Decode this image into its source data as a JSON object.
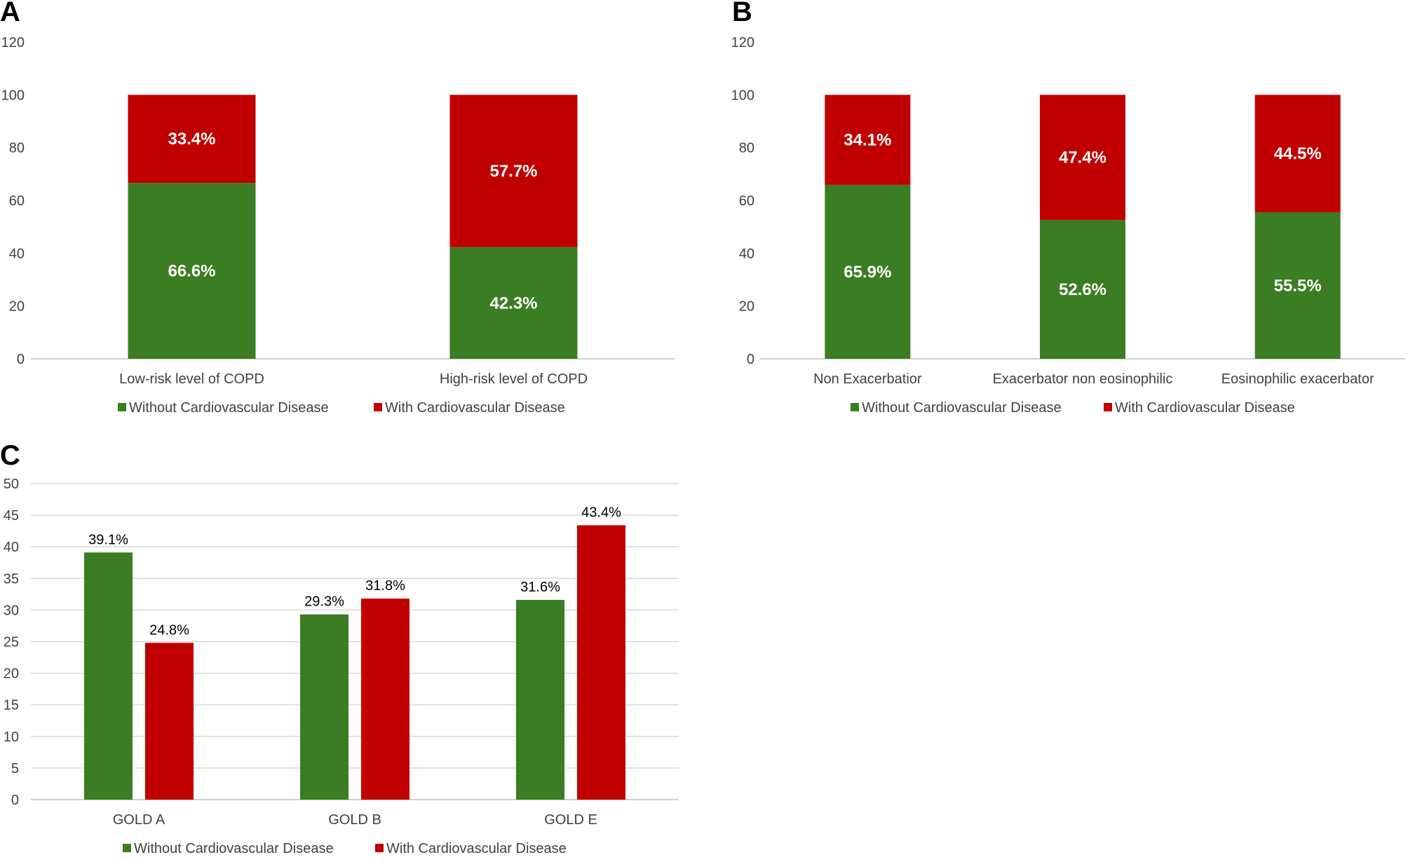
{
  "colors": {
    "without": "#3b7d23",
    "with": "#c00000",
    "grid": "#d9d9d9",
    "axis": "#bfbfbf",
    "text": "#404040",
    "panel_label": "#000000"
  },
  "chart_data": [
    {
      "panel": "A",
      "type": "bar",
      "stacked": true,
      "categories": [
        "Low-risk level of COPD",
        "High-risk level of COPD"
      ],
      "series": [
        {
          "name": "Without  Cardiovascular Disease",
          "key": "without",
          "values": [
            66.6,
            42.3
          ],
          "labels": [
            "66.6%",
            "42.3%"
          ]
        },
        {
          "name": "With Cardiovascular Disease",
          "key": "with",
          "values": [
            33.4,
            57.7
          ],
          "labels": [
            "33.4%",
            "57.7%"
          ]
        }
      ],
      "yticks": [
        "0",
        "20",
        "40",
        "60",
        "80",
        "100",
        "120"
      ],
      "ylim": [
        0,
        120
      ],
      "grid": false,
      "legend": "bottom"
    },
    {
      "panel": "B",
      "type": "bar",
      "stacked": true,
      "categories": [
        "Non Exacerbatior",
        "Exacerbator non eosinophilic",
        "Eosinophilic exacerbator"
      ],
      "series": [
        {
          "name": "Without Cardiovascular Disease",
          "key": "without",
          "values": [
            65.9,
            52.6,
            55.5
          ],
          "labels": [
            "65.9%",
            "52.6%",
            "55.5%"
          ]
        },
        {
          "name": "With Cardiovascular Disease",
          "key": "with",
          "values": [
            34.1,
            47.4,
            44.5
          ],
          "labels": [
            "34.1%",
            "47.4%",
            "44.5%"
          ]
        }
      ],
      "yticks": [
        "0",
        "20",
        "40",
        "60",
        "80",
        "100",
        "120"
      ],
      "ylim": [
        0,
        120
      ],
      "grid": false,
      "legend": "bottom"
    },
    {
      "panel": "C",
      "type": "bar",
      "stacked": false,
      "categories": [
        "GOLD A",
        "GOLD B",
        "GOLD E"
      ],
      "series": [
        {
          "name": "Without Cardiovascular Disease",
          "key": "without",
          "values": [
            39.1,
            29.3,
            31.6
          ],
          "labels": [
            "39.1%",
            "29.3%",
            "31.6%"
          ]
        },
        {
          "name": "With Cardiovascular Disease",
          "key": "with",
          "values": [
            24.8,
            31.8,
            43.4
          ],
          "labels": [
            "24.8%",
            "31.8%",
            "43.4%"
          ]
        }
      ],
      "yticks": [
        "0",
        "5",
        "10",
        "15",
        "20",
        "25",
        "30",
        "35",
        "40",
        "45",
        "50"
      ],
      "ylim": [
        0,
        50
      ],
      "grid": true,
      "legend": "bottom"
    }
  ]
}
